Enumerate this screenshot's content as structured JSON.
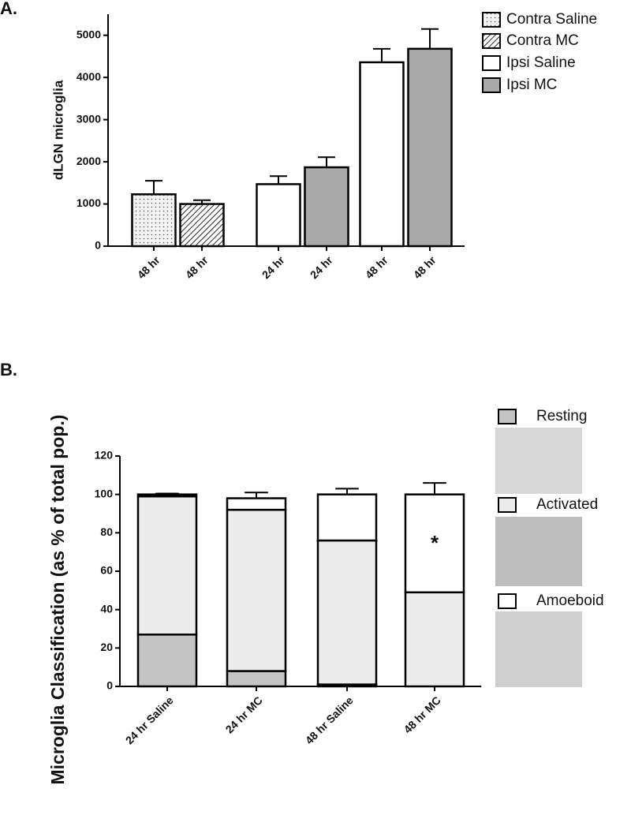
{
  "chart_data": [
    {
      "type": "bar",
      "panel_label": "A.",
      "y_label": "dLGN microglia",
      "categories": [
        "48 hr",
        "48 hr",
        "24 hr",
        "24 hr",
        "48 hr",
        "48 hr"
      ],
      "series": [
        {
          "name": "Contra Saline",
          "color": "#f2f2f2",
          "pattern": "dots",
          "values": [
            1230,
            null,
            null,
            null,
            null,
            null
          ],
          "errors": [
            320,
            null,
            null,
            null,
            null,
            null
          ]
        },
        {
          "name": "Contra MC",
          "color": "#ffffff",
          "pattern": "hatch",
          "values": [
            null,
            1000,
            null,
            null,
            null,
            null
          ],
          "errors": [
            null,
            90,
            null,
            null,
            null,
            null
          ]
        },
        {
          "name": "Ipsi Saline",
          "color": "#ffffff",
          "values": [
            null,
            null,
            1470,
            null,
            4360,
            null
          ],
          "errors": [
            null,
            null,
            190,
            null,
            320,
            null
          ]
        },
        {
          "name": "Ipsi MC",
          "color": "#a9a9a9",
          "values": [
            null,
            null,
            null,
            1870,
            null,
            4680
          ],
          "errors": [
            null,
            null,
            null,
            240,
            null,
            470
          ]
        }
      ],
      "ylim": [
        0,
        5500
      ],
      "yticks": [
        0,
        1000,
        2000,
        3000,
        4000,
        5000
      ]
    },
    {
      "type": "stacked_bar",
      "panel_label": "B.",
      "y_label": "Microglia Classification (as % of total pop.)",
      "categories": [
        "24 hr Saline",
        "24 hr MC",
        "48 hr Saline",
        "48 hr MC"
      ],
      "series": [
        {
          "name": "Resting",
          "color": "#c4c4c4",
          "values": [
            27,
            8,
            1,
            0
          ],
          "errors": [
            2,
            5,
            0.5,
            0
          ]
        },
        {
          "name": "Activated",
          "color": "#ececec",
          "values": [
            72,
            84,
            75,
            49
          ],
          "errors": [
            0.5,
            1,
            2,
            6
          ]
        },
        {
          "name": "Amoeboid",
          "color": "#ffffff",
          "values": [
            1,
            6,
            24,
            51
          ],
          "errors": [
            0.5,
            3,
            3,
            6
          ]
        }
      ],
      "ylim": [
        0,
        120
      ],
      "yticks": [
        0,
        20,
        40,
        60,
        80,
        100,
        120
      ],
      "annotations": [
        {
          "text": "*"
        }
      ]
    }
  ]
}
